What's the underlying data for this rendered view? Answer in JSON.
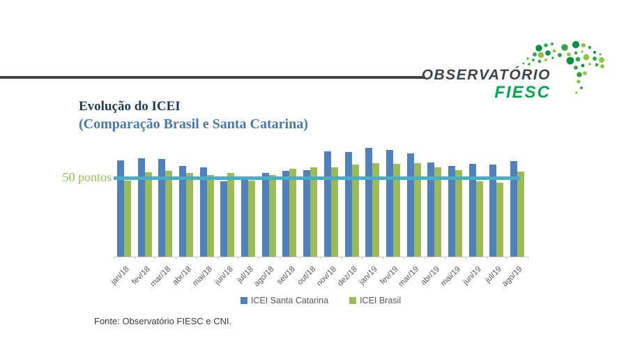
{
  "logo": {
    "wordmark": "OBSERVATÓRIO",
    "brand": "FIESC",
    "wordmark_color": "#3f4448",
    "brand_color": "#00a651",
    "dot_colors": {
      "dark": "#00923f",
      "mid": "#33a94a",
      "light": "#8dc63f"
    }
  },
  "title": {
    "line1": "Evolução do ICEI",
    "line2": "(Comparação Brasil e Santa Catarina)",
    "line1_color": "#1f3b54",
    "line2_color": "#4878b0"
  },
  "chart_data": {
    "type": "bar",
    "categories": [
      "jan/18",
      "fev/18",
      "mar/18",
      "abr/18",
      "mai/18",
      "jun/18",
      "jul/18",
      "ago/18",
      "set/18",
      "out/18",
      "nov/18",
      "dez/18",
      "jan/19",
      "fev/19",
      "mar/19",
      "abr/19",
      "mai/19",
      "jun/19",
      "jul/19",
      "ago/19"
    ],
    "series": [
      {
        "name": "ICEI Santa Catarina",
        "color": "#4f81bd",
        "values": [
          61,
          62.5,
          62,
          57.5,
          56.5,
          48,
          49,
          53,
          54.5,
          55,
          67,
          66.5,
          69,
          68,
          65.5,
          60,
          57.5,
          59,
          58.5,
          60.5
        ]
      },
      {
        "name": "ICEI Brasil",
        "color": "#9bbb59",
        "values": [
          48.5,
          53.5,
          54.5,
          53,
          52,
          53,
          48.5,
          52,
          56,
          56.5,
          56.5,
          58.5,
          59.5,
          59,
          59.5,
          56.5,
          55,
          48,
          47,
          54
        ]
      }
    ],
    "reference_line": {
      "label": "50 pontos",
      "value": 50,
      "color": "#4bacc6",
      "label_color": "#9bbb59"
    },
    "ylim": [
      0,
      70
    ],
    "grid": false,
    "legend_position": "bottom",
    "xlabel": "",
    "ylabel": ""
  },
  "footer": {
    "source": "Fonte: Observatório FIESC e CNI."
  }
}
